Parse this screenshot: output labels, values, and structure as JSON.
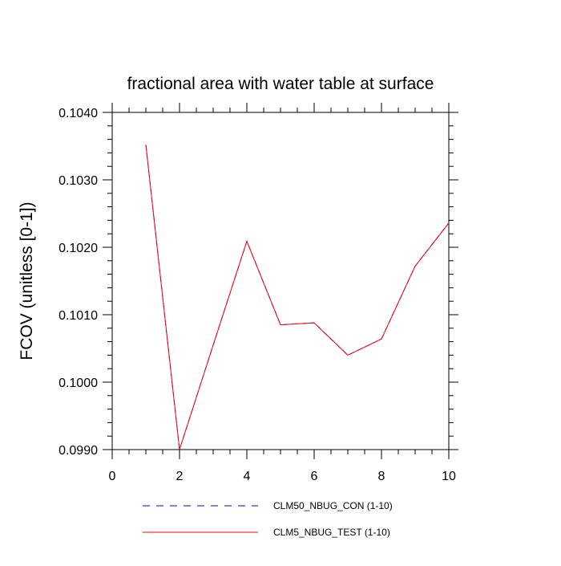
{
  "chart_data": {
    "type": "line",
    "title": "fractional area with water table at surface",
    "xlabel": "",
    "ylabel": "FCOV  (unitless [0-1])",
    "xlim": [
      0,
      10
    ],
    "ylim": [
      0.099,
      0.104
    ],
    "xticks": [
      0,
      2,
      4,
      6,
      8,
      10
    ],
    "xtick_labels": [
      "0",
      "2",
      "4",
      "6",
      "8",
      "10"
    ],
    "yticks": [
      0.099,
      0.1,
      0.101,
      0.102,
      0.103,
      0.104
    ],
    "ytick_labels": [
      "0.0990",
      "0.1000",
      "0.1010",
      "0.1020",
      "0.1030",
      "0.1040"
    ],
    "x_minor_step": 0.5,
    "y_minor_step": 0.0002,
    "grid": false,
    "legend_position": "bottom",
    "series": [
      {
        "name": "CLM50_NBUG_CON (1-10)",
        "color": "#0000ff",
        "style": "dashed",
        "x": [
          1,
          2,
          3,
          4,
          5,
          6,
          7,
          8,
          9,
          10
        ],
        "values": [
          0.10352,
          0.099,
          0.10055,
          0.10209,
          0.10085,
          0.10088,
          0.1004,
          0.10064,
          0.10172,
          0.10236
        ]
      },
      {
        "name": "CLM5_NBUG_TEST (1-10)",
        "color": "#ff0000",
        "style": "solid",
        "x": [
          1,
          2,
          3,
          4,
          5,
          6,
          7,
          8,
          9,
          10
        ],
        "values": [
          0.10352,
          0.099,
          0.10055,
          0.10209,
          0.10085,
          0.10088,
          0.1004,
          0.10064,
          0.10172,
          0.10236
        ]
      }
    ]
  }
}
